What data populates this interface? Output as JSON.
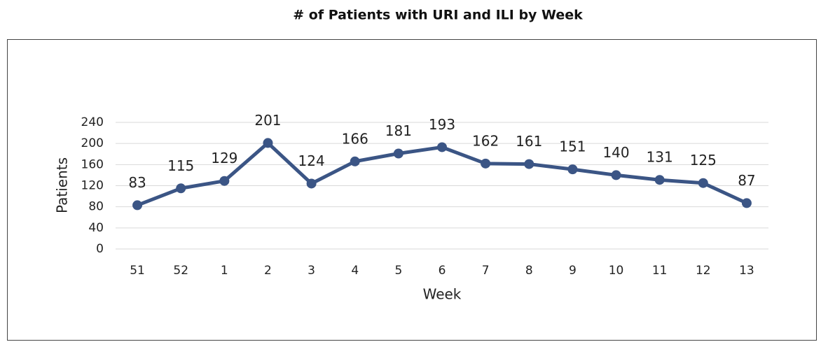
{
  "chart_data": {
    "type": "line",
    "title": "# of Patients with URI and ILI by Week",
    "x_label": "Week",
    "y_label": "Patients",
    "categories": [
      "51",
      "52",
      "1",
      "2",
      "3",
      "4",
      "5",
      "6",
      "7",
      "8",
      "9",
      "10",
      "11",
      "12",
      "13"
    ],
    "series": [
      {
        "name": "Patients",
        "color": "#3b5585",
        "values": [
          83,
          115,
          129,
          201,
          124,
          166,
          181,
          193,
          162,
          161,
          151,
          140,
          131,
          125,
          87
        ]
      }
    ],
    "ylim": [
      0,
      240
    ],
    "yticks": [
      0,
      40,
      80,
      120,
      160,
      200,
      240
    ],
    "grid": true,
    "data_labels": true
  }
}
